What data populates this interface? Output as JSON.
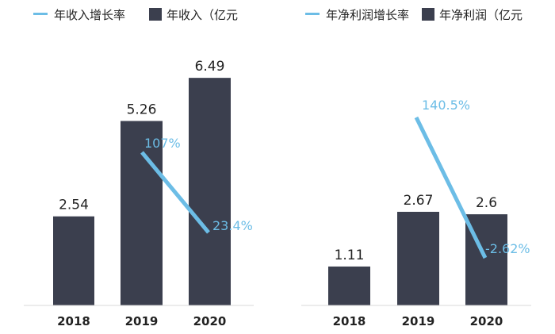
{
  "chart_data": [
    {
      "type": "bar",
      "categories": [
        "2018",
        "2019",
        "2020"
      ],
      "series": [
        {
          "name": "年收入（亿元",
          "values": [
            2.54,
            5.26,
            6.49
          ]
        },
        {
          "name": "年收入增长率",
          "type": "line",
          "values": [
            null,
            107,
            23.4
          ],
          "labels": [
            "",
            "107%",
            "23.4%"
          ]
        }
      ],
      "bar_labels": [
        "2.54",
        "5.26",
        "6.49"
      ],
      "legend": [
        "年收入增长率",
        "年收入（亿元"
      ],
      "colors": {
        "bar": "#3b3f4e",
        "line": "#6cbde6"
      }
    },
    {
      "type": "bar",
      "categories": [
        "2018",
        "2019",
        "2020"
      ],
      "series": [
        {
          "name": "年净利润（亿元",
          "values": [
            1.11,
            2.67,
            2.6
          ]
        },
        {
          "name": "年净利润增长率",
          "type": "line",
          "values": [
            null,
            140.5,
            -2.62
          ],
          "labels": [
            "",
            "140.5%",
            "-2.62%"
          ]
        }
      ],
      "bar_labels": [
        "1.11",
        "2.67",
        "2.6"
      ],
      "legend": [
        "年净利润增长率",
        "年净利润（亿元"
      ],
      "colors": {
        "bar": "#3b3f4e",
        "line": "#6cbde6"
      }
    }
  ]
}
